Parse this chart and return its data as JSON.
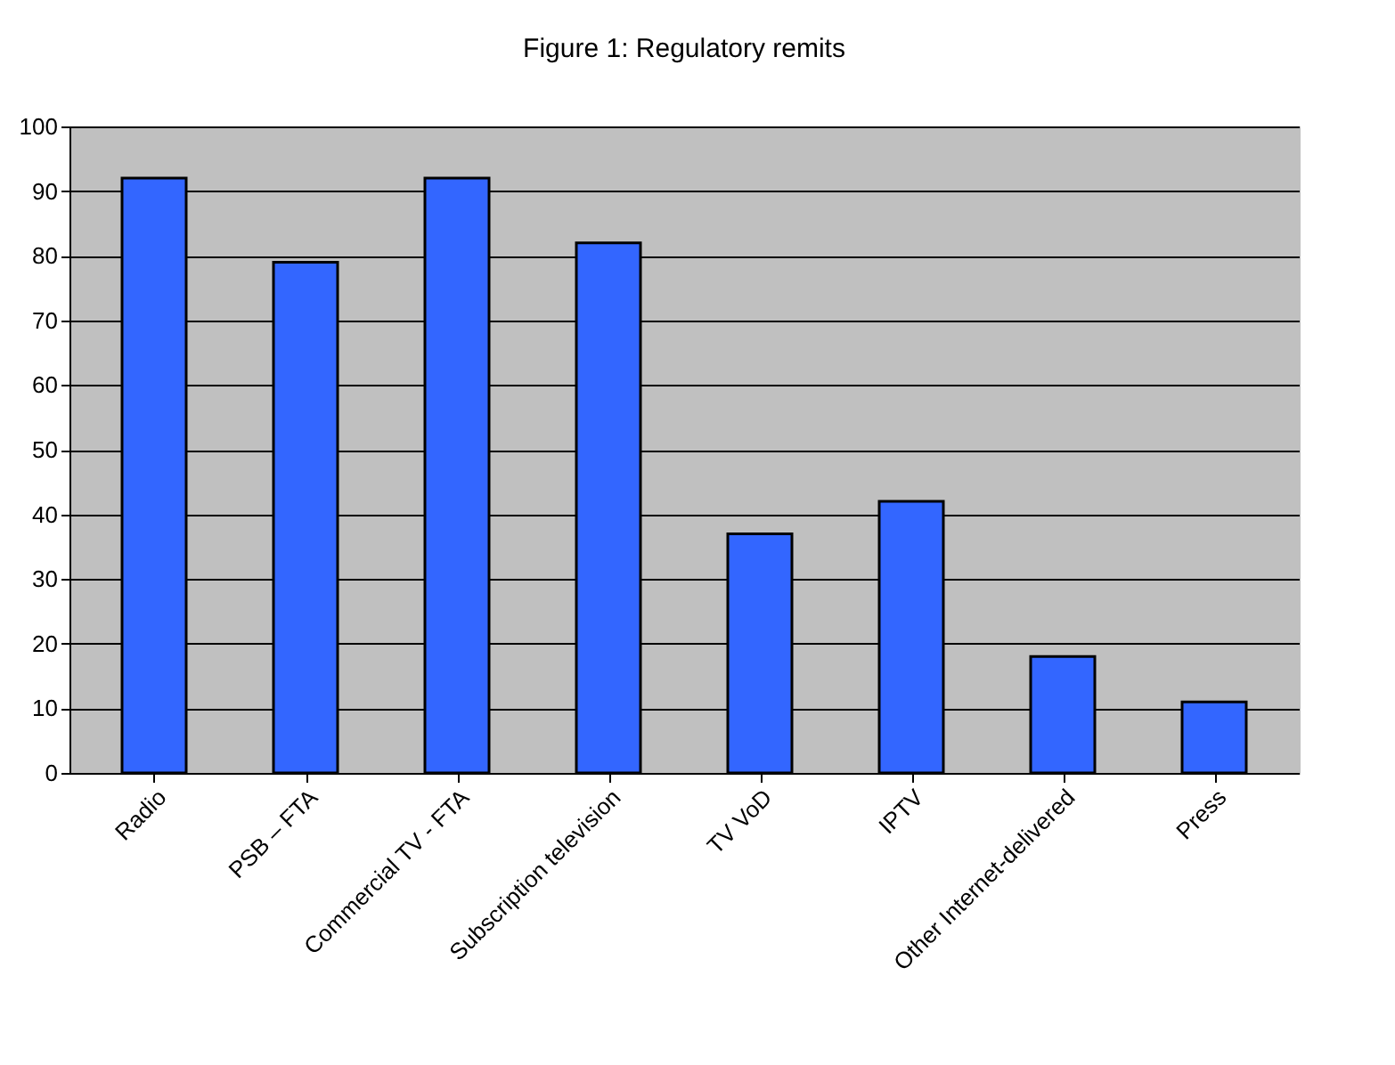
{
  "chart_data": {
    "type": "bar",
    "title": "Figure 1: Regulatory remits",
    "categories": [
      "Radio",
      "PSB – FTA",
      "Commercial TV  - FTA",
      "Subscription television",
      "TV VoD",
      "IPTV",
      "Other Internet-delivered",
      "Press"
    ],
    "values": [
      92,
      79,
      92,
      82,
      37,
      42,
      18,
      11
    ],
    "color": "#3366ff",
    "ylim": [
      0,
      100
    ],
    "yticks": [
      0,
      10,
      20,
      30,
      40,
      50,
      60,
      70,
      80,
      90,
      100
    ],
    "grid": "y"
  }
}
